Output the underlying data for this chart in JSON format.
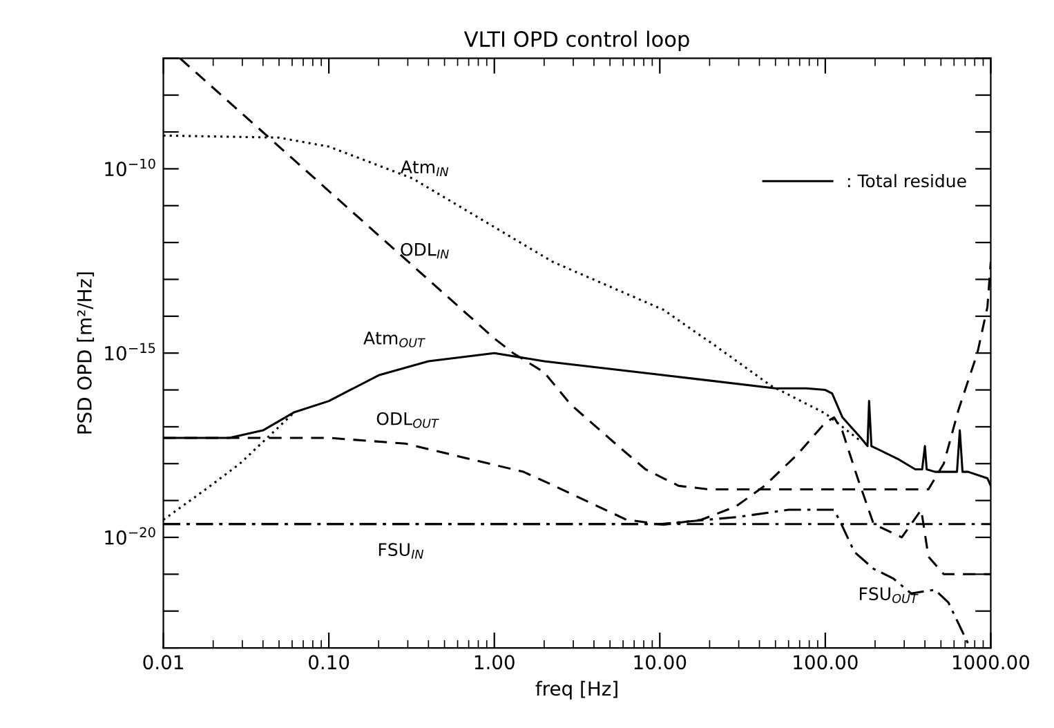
{
  "chart_data": {
    "type": "line",
    "title": "VLTI OPD control loop",
    "xlabel": "freq [Hz]",
    "ylabel": "PSD OPD [m²/Hz]",
    "log": "xy",
    "xlim": [
      0.01,
      1000
    ],
    "ylim": [
      1e-23,
      1e-07
    ],
    "xticks": [
      0.01,
      {
        "value": 0.1,
        "label": "0.10"
      },
      {
        "value": 1,
        "label": "1.00"
      },
      {
        "value": 10,
        "label": "10.00"
      },
      {
        "value": 100,
        "label": "100.00"
      },
      {
        "value": 1000,
        "label": "1000.00"
      }
    ],
    "yticks": [
      {
        "value": 1e-23,
        "label": null
      },
      {
        "value": 1e-22,
        "label": null
      },
      {
        "value": 1e-21,
        "label": null
      },
      {
        "value": 1e-20,
        "label": "10$^{−20}$"
      },
      {
        "value": 1e-19,
        "label": null
      },
      {
        "value": 1e-18,
        "label": null
      },
      {
        "value": 1e-17,
        "label": null
      },
      {
        "value": 1e-16,
        "label": null
      },
      {
        "value": 1e-15,
        "label": "10$^{−15}$"
      },
      {
        "value": 1e-14,
        "label": null
      },
      {
        "value": 1e-13,
        "label": null
      },
      {
        "value": 1e-12,
        "label": null
      },
      {
        "value": 1e-11,
        "label": null
      },
      {
        "value": 1e-10,
        "label": "10$^{−10}$"
      },
      {
        "value": 1e-09,
        "label": null
      },
      {
        "value": 1e-08,
        "label": null
      },
      {
        "value": 1e-07,
        "label": null
      }
    ],
    "grid": false,
    "legend": "top right",
    "marker": "none",
    "series": [
      {
        "color": "#000000",
        "line_style": "dotted",
        "x": [
          0.01,
          0.05,
          0.1,
          0.32,
          2.25,
          10.5,
          22,
          47,
          100,
          165
        ],
        "values": [
          8e-10,
          7e-10,
          4e-10,
          5.5e-11,
          3e-13,
          1.5e-14,
          1.5e-15,
          1.3e-16,
          2.3e-17,
          4e-18
        ]
      },
      {
        "color": "#000000",
        "line_style": "dotted",
        "x": [
          0.01,
          0.018,
          0.029,
          0.062
        ],
        "values": [
          3e-20,
          2e-19,
          1e-18,
          2.5e-17
        ]
      },
      {
        "color": "#000000",
        "line_style": "dashed",
        "x": [
          0.0126,
          0.1,
          1,
          1.3,
          2,
          2.9,
          5.6,
          8.2,
          13,
          20,
          100,
          420,
          520,
          640,
          830,
          955,
          1000
        ],
        "values": [
          1e-07,
          2.5e-11,
          2.5e-15,
          1e-15,
          3e-16,
          4e-17,
          3e-18,
          7e-19,
          2.5e-19,
          2e-19,
          2e-19,
          2e-19,
          1e-18,
          3e-17,
          1e-15,
          1.8e-14,
          3e-13
        ]
      },
      {
        "name": ": Total residue",
        "color": "#000000",
        "line_style": "solid",
        "x": [
          0.01,
          0.025,
          0.04,
          0.062,
          0.1,
          0.2,
          0.4,
          1,
          2,
          10,
          50,
          77,
          100,
          110,
          127,
          164,
          180,
          184,
          190,
          278,
          350,
          385,
          400,
          410,
          460,
          625,
          650,
          675,
          730,
          955,
          1000
        ],
        "values": [
          5e-18,
          5e-18,
          8e-18,
          2.5e-17,
          5e-17,
          2.5e-16,
          6e-16,
          1e-15,
          6e-16,
          2.6e-16,
          1.1e-16,
          1.1e-16,
          1e-16,
          8e-17,
          1.8e-17,
          5e-18,
          3e-18,
          5e-17,
          3e-18,
          1.3e-18,
          7e-19,
          7e-19,
          3e-18,
          7e-19,
          6e-19,
          6e-19,
          8e-18,
          6e-19,
          6e-19,
          4e-19,
          2.5e-19
        ]
      },
      {
        "color": "#000000",
        "line_style": "dashed",
        "x": [
          0.01,
          0.1,
          0.29,
          1.5,
          2.3,
          6.3,
          10.5,
          17.8,
          29,
          43,
          68,
          100,
          113,
          127,
          157,
          196,
          290,
          380,
          420,
          520,
          1000
        ],
        "values": [
          5e-18,
          5e-18,
          3.5e-18,
          6e-19,
          2.5e-19,
          3e-20,
          2.2e-20,
          3e-20,
          7e-20,
          2.5e-19,
          1.8e-18,
          1.3e-17,
          1.8e-17,
          7.5e-18,
          4e-19,
          2.3e-20,
          1e-20,
          5.6e-20,
          3e-21,
          1e-21,
          1e-21
        ]
      },
      {
        "color": "#000000",
        "line_style": "dashdot",
        "x": [
          0.01,
          1000
        ],
        "values": [
          2.3e-20,
          2.3e-20
        ]
      },
      {
        "color": "#000000",
        "line_style": "dashdot",
        "x": [
          0.01,
          1,
          10,
          30,
          60,
          113,
          125,
          150,
          196,
          258,
          330,
          460,
          555,
          730,
          770
        ],
        "values": [
          2.3e-20,
          2.3e-20,
          2.3e-20,
          3.6e-20,
          5.6e-20,
          5.6e-20,
          2.3e-20,
          4e-21,
          1.4e-21,
          7.6e-22,
          3e-22,
          3.8e-22,
          1.7e-22,
          1.3e-23,
          1e-23
        ]
      }
    ],
    "annotations": [
      "Atm$_{IN}$",
      "ODL$_{IN}$",
      "Atm$_{OUT}$",
      "ODL$_{OUT}$",
      "FSU$_{IN}$",
      "FSU$_{OUT}$"
    ]
  }
}
